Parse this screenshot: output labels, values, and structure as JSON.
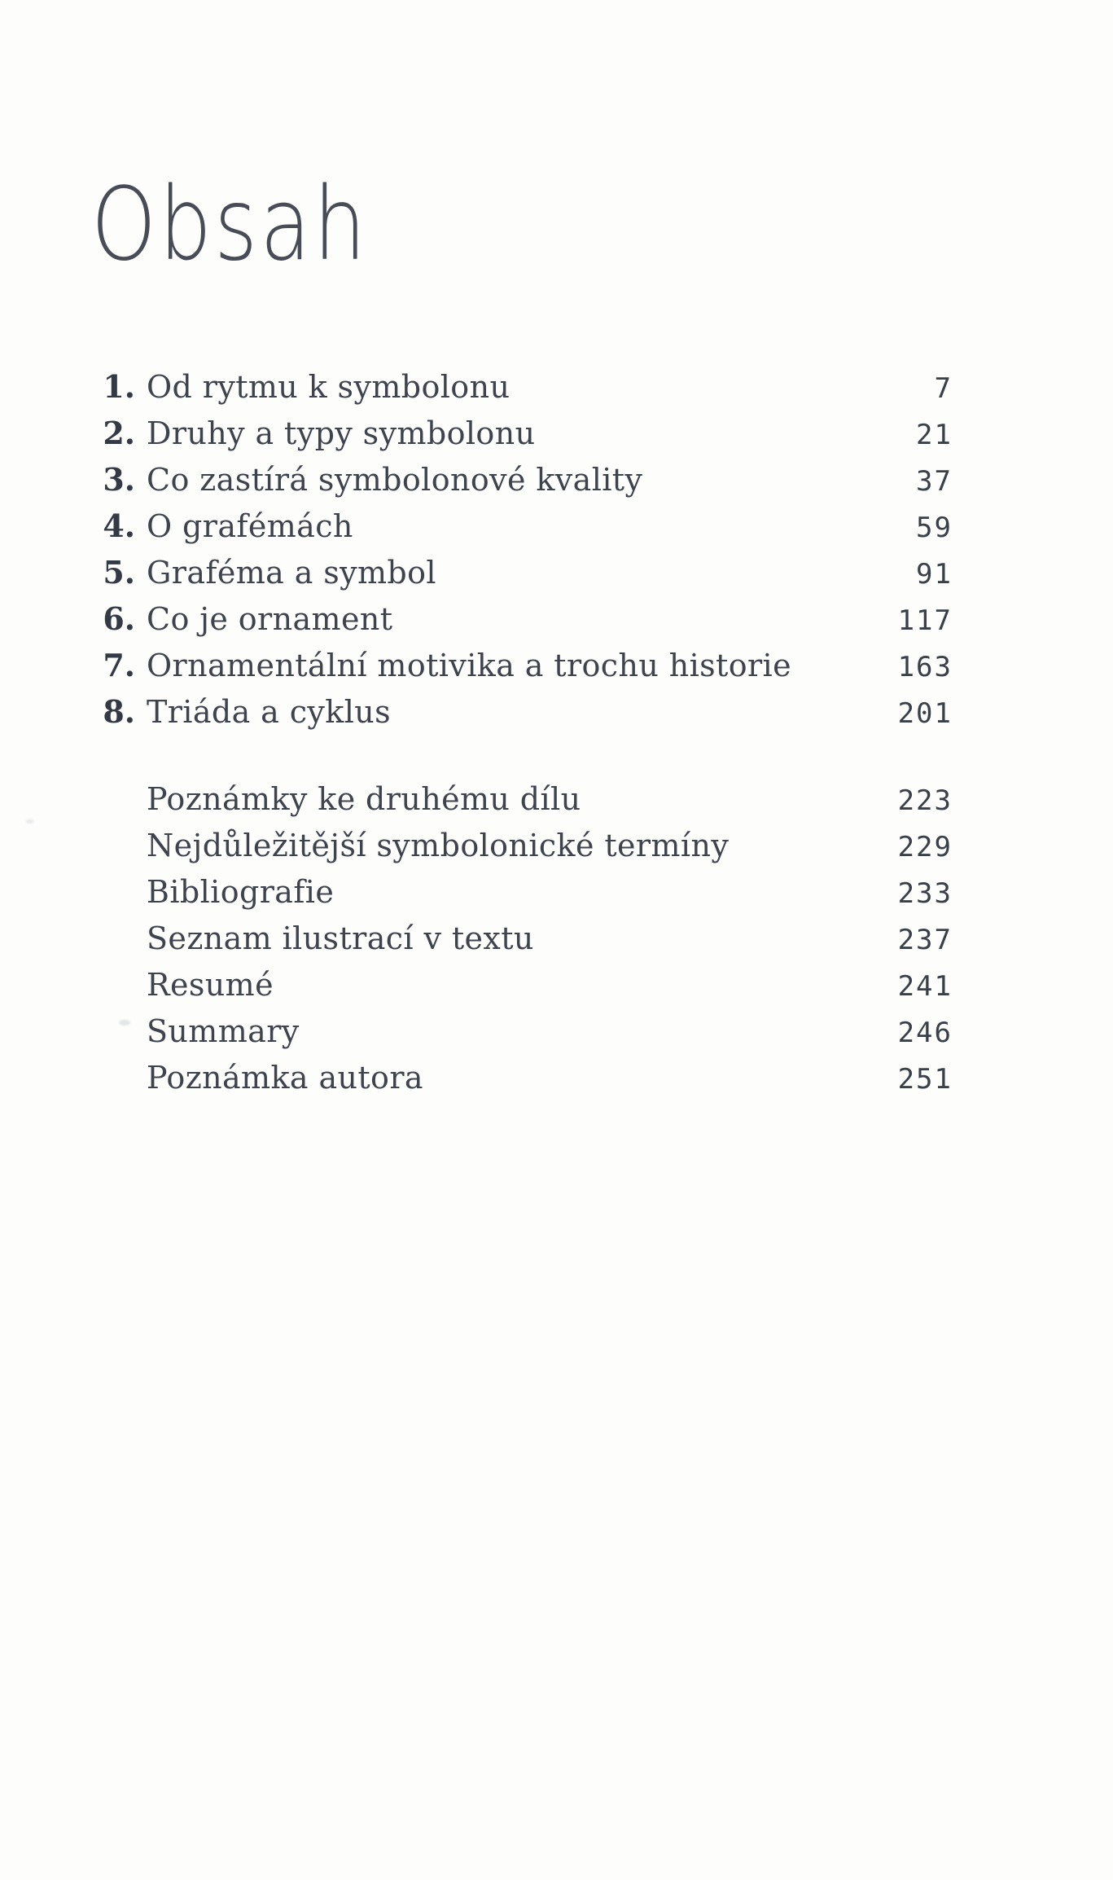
{
  "page": {
    "title": "Obsah",
    "chapters": [
      {
        "num": "1.",
        "title": "Od rytmu k symbolonu",
        "page": "7"
      },
      {
        "num": "2.",
        "title": "Druhy a typy symbolonu",
        "page": "21"
      },
      {
        "num": "3.",
        "title": "Co zastírá symbolonové kvality",
        "page": "37"
      },
      {
        "num": "4.",
        "title": "O grafémách",
        "page": "59"
      },
      {
        "num": "5.",
        "title": "Graféma a symbol",
        "page": "91"
      },
      {
        "num": "6.",
        "title": "Co je ornament",
        "page": "117"
      },
      {
        "num": "7.",
        "title": "Ornamentální motivika a trochu historie",
        "page": "163"
      },
      {
        "num": "8.",
        "title": "Triáda a cyklus",
        "page": "201"
      }
    ],
    "sections": [
      {
        "title": "Poznámky ke druhému dílu",
        "page": "223"
      },
      {
        "title": "Nejdůležitější symbolonické termíny",
        "page": "229"
      },
      {
        "title": "Bibliografie",
        "page": "233"
      },
      {
        "title": "Seznam ilustrací v textu",
        "page": "237"
      },
      {
        "title": "Resumé",
        "page": "241"
      },
      {
        "title": "Summary",
        "page": "246"
      },
      {
        "title": "Poznámka autora",
        "page": "251"
      }
    ]
  },
  "colors": {
    "paper": "#fdfdfc",
    "text": "#3e434e",
    "chapter_number": "#333945",
    "page_number": "#3a4049",
    "title": "#474c56"
  }
}
